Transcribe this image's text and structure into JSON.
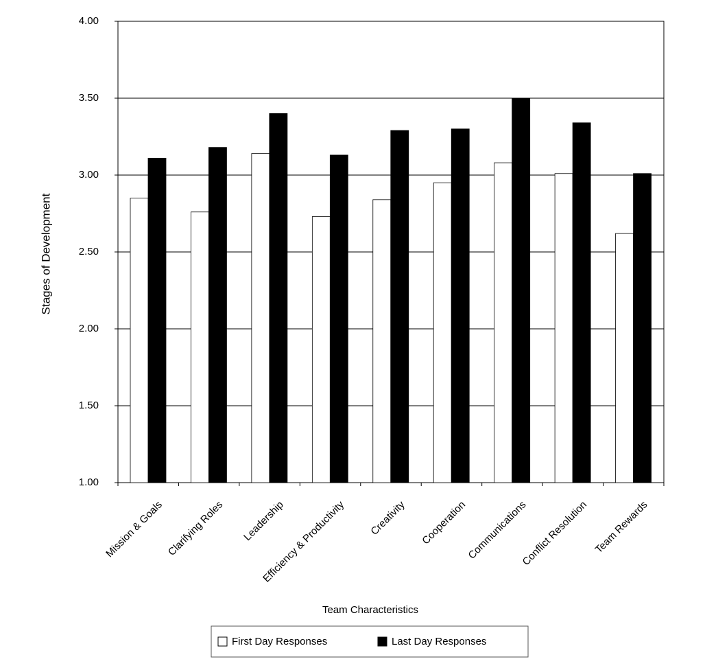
{
  "chart_data": {
    "type": "bar",
    "x_label": "Team Characteristics",
    "y_label": "Stages of Development",
    "categories": [
      "Mission & Goals",
      "Clarifying Roles",
      "Leadership",
      "Efficiency & Productivity",
      "Creativity",
      "Cooperation",
      "Communications",
      "Conflict Resolution",
      "Team Rewards"
    ],
    "series": [
      {
        "name": "First Day Responses",
        "color": "#ffffff",
        "values": [
          2.85,
          2.76,
          3.14,
          2.73,
          2.84,
          2.95,
          3.08,
          3.01,
          2.62
        ]
      },
      {
        "name": "Last Day Responses",
        "color": "#000000",
        "values": [
          3.11,
          3.18,
          3.4,
          3.13,
          3.29,
          3.3,
          3.5,
          3.34,
          3.01
        ]
      }
    ],
    "ylim": [
      1,
      4
    ],
    "yticks": [
      {
        "value": 1,
        "label": "1.00"
      },
      {
        "value": 1.5,
        "label": "1.50"
      },
      {
        "value": 2,
        "label": "2.00"
      },
      {
        "value": 2.5,
        "label": "2.50"
      },
      {
        "value": 3,
        "label": "3.00"
      },
      {
        "value": 3.5,
        "label": "3.50"
      },
      {
        "value": 4,
        "label": "4.00"
      }
    ],
    "grid": true,
    "legend": "bottom"
  }
}
